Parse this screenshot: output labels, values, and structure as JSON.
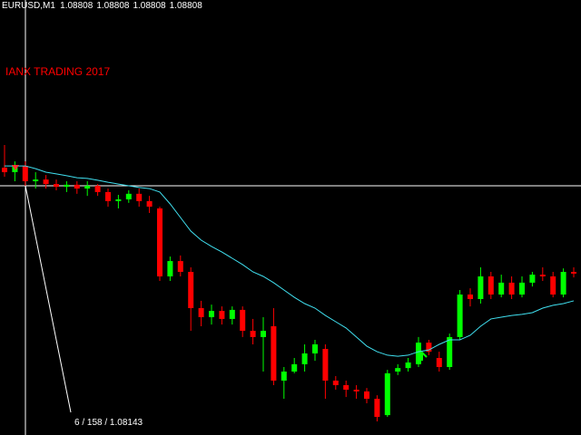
{
  "chart_data": {
    "type": "candlestick",
    "symbol": "EURUSD,M1",
    "header_ohlc": [
      1.08808,
      1.08808,
      1.08808,
      1.08808
    ],
    "watermark": "IANX TRADING 2017",
    "crosshair_label": "6 / 158 / 1.08143",
    "ylim": [
      1.08093,
      1.09341
    ],
    "up_color": "#00ff00",
    "down_color": "#ff0000",
    "open": [
      1.0886,
      1.08847,
      1.08865,
      1.08821,
      1.08826,
      1.08813,
      1.08805,
      1.08811,
      1.088,
      1.08808,
      1.0879,
      1.08764,
      1.08769,
      1.08785,
      1.08764,
      1.08743,
      1.08548,
      1.08592,
      1.08561,
      1.08457,
      1.08431,
      1.08449,
      1.08426,
      1.08452,
      1.08392,
      1.08374,
      1.08405,
      1.08249,
      1.08275,
      1.08296,
      1.08327,
      1.0834,
      1.08249,
      1.08236,
      1.08223,
      1.08218,
      1.08197,
      1.0815,
      1.08275,
      1.08285,
      1.08296,
      1.08358,
      1.08314,
      1.08288,
      1.08374,
      1.08496,
      1.08483,
      1.08548,
      1.08496,
      1.0853,
      1.08496,
      1.0853,
      1.08553,
      1.08548,
      1.08496,
      1.08561
    ],
    "high": [
      1.08925,
      1.08878,
      1.08878,
      1.08847,
      1.08839,
      1.08826,
      1.08821,
      1.08821,
      1.08821,
      1.08813,
      1.088,
      1.08782,
      1.08795,
      1.088,
      1.08779,
      1.08748,
      1.08605,
      1.08608,
      1.08574,
      1.08478,
      1.08467,
      1.08462,
      1.08462,
      1.08462,
      1.08426,
      1.08431,
      1.08457,
      1.08288,
      1.08314,
      1.08353,
      1.08366,
      1.08353,
      1.08262,
      1.08249,
      1.08236,
      1.08228,
      1.08207,
      1.0828,
      1.08296,
      1.08314,
      1.08374,
      1.08366,
      1.08332,
      1.08384,
      1.08509,
      1.08514,
      1.08574,
      1.08561,
      1.08553,
      1.08548,
      1.08548,
      1.08561,
      1.08574,
      1.08561,
      1.08571,
      1.08574
    ],
    "low": [
      1.08834,
      1.08821,
      1.08808,
      1.088,
      1.088,
      1.08795,
      1.0879,
      1.08785,
      1.08779,
      1.08779,
      1.08748,
      1.08743,
      1.08759,
      1.08748,
      1.0873,
      1.08535,
      1.08535,
      1.08548,
      1.08392,
      1.08405,
      1.0841,
      1.0841,
      1.0841,
      1.08374,
      1.08353,
      1.08275,
      1.08236,
      1.08197,
      1.0827,
      1.08275,
      1.08306,
      1.08197,
      1.08223,
      1.08202,
      1.08197,
      1.08184,
      1.08132,
      1.08145,
      1.08265,
      1.08275,
      1.08288,
      1.08322,
      1.08275,
      1.0828,
      1.08366,
      1.08462,
      1.0847,
      1.08483,
      1.08488,
      1.08483,
      1.08488,
      1.08519,
      1.08535,
      1.08488,
      1.08488,
      1.08545
    ],
    "close": [
      1.08847,
      1.08865,
      1.08821,
      1.08826,
      1.08813,
      1.08805,
      1.08811,
      1.088,
      1.08808,
      1.0879,
      1.08764,
      1.08769,
      1.08785,
      1.08764,
      1.08748,
      1.08548,
      1.08592,
      1.08561,
      1.08457,
      1.08431,
      1.08449,
      1.08426,
      1.08452,
      1.08392,
      1.08374,
      1.08392,
      1.08249,
      1.08275,
      1.08296,
      1.08327,
      1.08353,
      1.08249,
      1.08236,
      1.08223,
      1.08218,
      1.08197,
      1.08145,
      1.0827,
      1.08285,
      1.08301,
      1.08358,
      1.08332,
      1.08288,
      1.08374,
      1.08496,
      1.08483,
      1.08548,
      1.08496,
      1.0853,
      1.08496,
      1.0853,
      1.08553,
      1.08548,
      1.08496,
      1.08561,
      1.08556
    ],
    "ma": {
      "color": "#40e0f0",
      "values": [
        1.08865,
        1.08865,
        1.08865,
        1.08857,
        1.08847,
        1.08842,
        1.08837,
        1.08831,
        1.08829,
        1.08824,
        1.08818,
        1.08813,
        1.08808,
        1.08803,
        1.088,
        1.0879,
        1.08756,
        1.08717,
        1.08678,
        1.08652,
        1.08634,
        1.08618,
        1.086,
        1.08582,
        1.08561,
        1.08548,
        1.0853,
        1.08509,
        1.08488,
        1.0847,
        1.08457,
        1.08436,
        1.08418,
        1.084,
        1.08374,
        1.08348,
        1.08332,
        1.08322,
        1.08319,
        1.08322,
        1.08332,
        1.08337,
        1.08353,
        1.08366,
        1.08366,
        1.08379,
        1.08405,
        1.08426,
        1.08431,
        1.08436,
        1.08439,
        1.08444,
        1.08457,
        1.08465,
        1.0847,
        1.08478
      ]
    }
  }
}
